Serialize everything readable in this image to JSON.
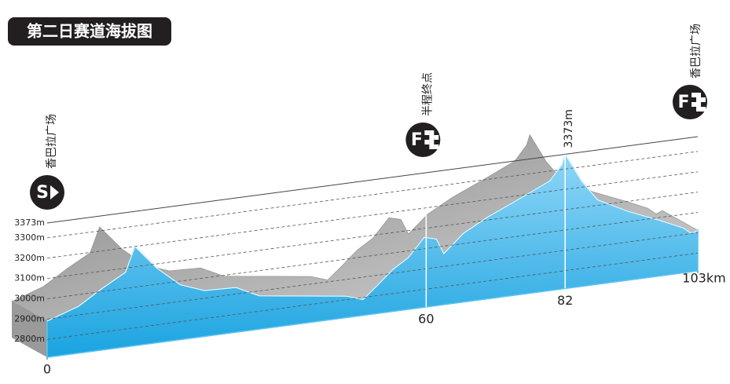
{
  "chart_data": {
    "type": "area",
    "title": "第二日赛道海拔图",
    "x": [
      0,
      5,
      8.7,
      12.4,
      13.9,
      17.4,
      21.1,
      24.9,
      29.9,
      33.6,
      37.3,
      42.3,
      47.3,
      50,
      52.2,
      54.7,
      57.2,
      59.7,
      61.6,
      62.8,
      65.9,
      69.7,
      74.6,
      79.6,
      81.5,
      82,
      84.6,
      87.1,
      92,
      97,
      100.7,
      102,
      103
    ],
    "values": [
      2890,
      2943,
      3015,
      3079,
      3200,
      3078,
      2982,
      2938,
      2932,
      2876,
      2860,
      2839,
      2818,
      2790,
      2848,
      2918,
      2967,
      3056,
      3040,
      2963,
      3050,
      3114,
      3181,
      3252,
      3324,
      3373,
      3230,
      3128,
      3050,
      2985,
      2933,
      2900,
      2912
    ],
    "color": "#5bc3f2",
    "xlim": [
      0,
      103
    ],
    "xticks": [
      0,
      60,
      82,
      {
        "value": 103,
        "label": "103km"
      }
    ],
    "ylim": [
      2712,
      3373
    ],
    "yticks": [
      {
        "value": 2800,
        "label": "2800m"
      },
      {
        "value": 2900,
        "label": "2900m"
      },
      {
        "value": 3000,
        "label": "3000m"
      },
      {
        "value": 3100,
        "label": "3100m"
      },
      {
        "value": 3200,
        "label": "3200m"
      },
      {
        "value": 3300,
        "label": "3300m"
      },
      {
        "value": 3373,
        "label": "3373m"
      }
    ],
    "grid": true,
    "annotations": {
      "peak_label": "3373m",
      "start_label": "香巴拉广场",
      "halfway_label": "半程终点",
      "finish_label": "香巴拉广场",
      "start_icon": "S",
      "finish_icon": "F"
    }
  }
}
